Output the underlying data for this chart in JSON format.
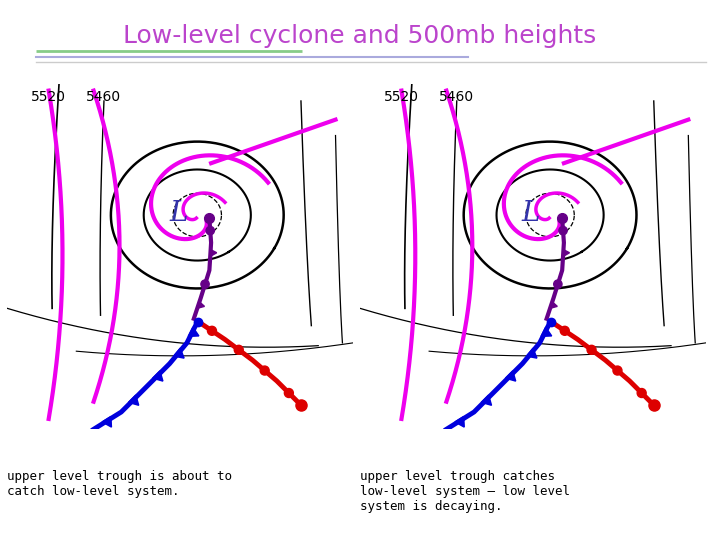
{
  "title": "Low-level cyclone and 500mb heights",
  "title_color": "#BB44CC",
  "title_fontsize": 18,
  "bg_color": "#FFFFFF",
  "label_5520": "5520",
  "label_5460": "5460",
  "caption_left": "upper level trough is about to\ncatch low-level system.",
  "caption_right": "upper level trough catches\nlow-level system – low level\nsystem is decaying.",
  "magenta": "#EE00EE",
  "dark_magenta": "#660088",
  "blue": "#0000DD",
  "red": "#DD0000",
  "black": "#000000",
  "separator_green": "#88CC88",
  "separator_lavender": "#AAAADD",
  "separator_gray": "#CCCCCC"
}
